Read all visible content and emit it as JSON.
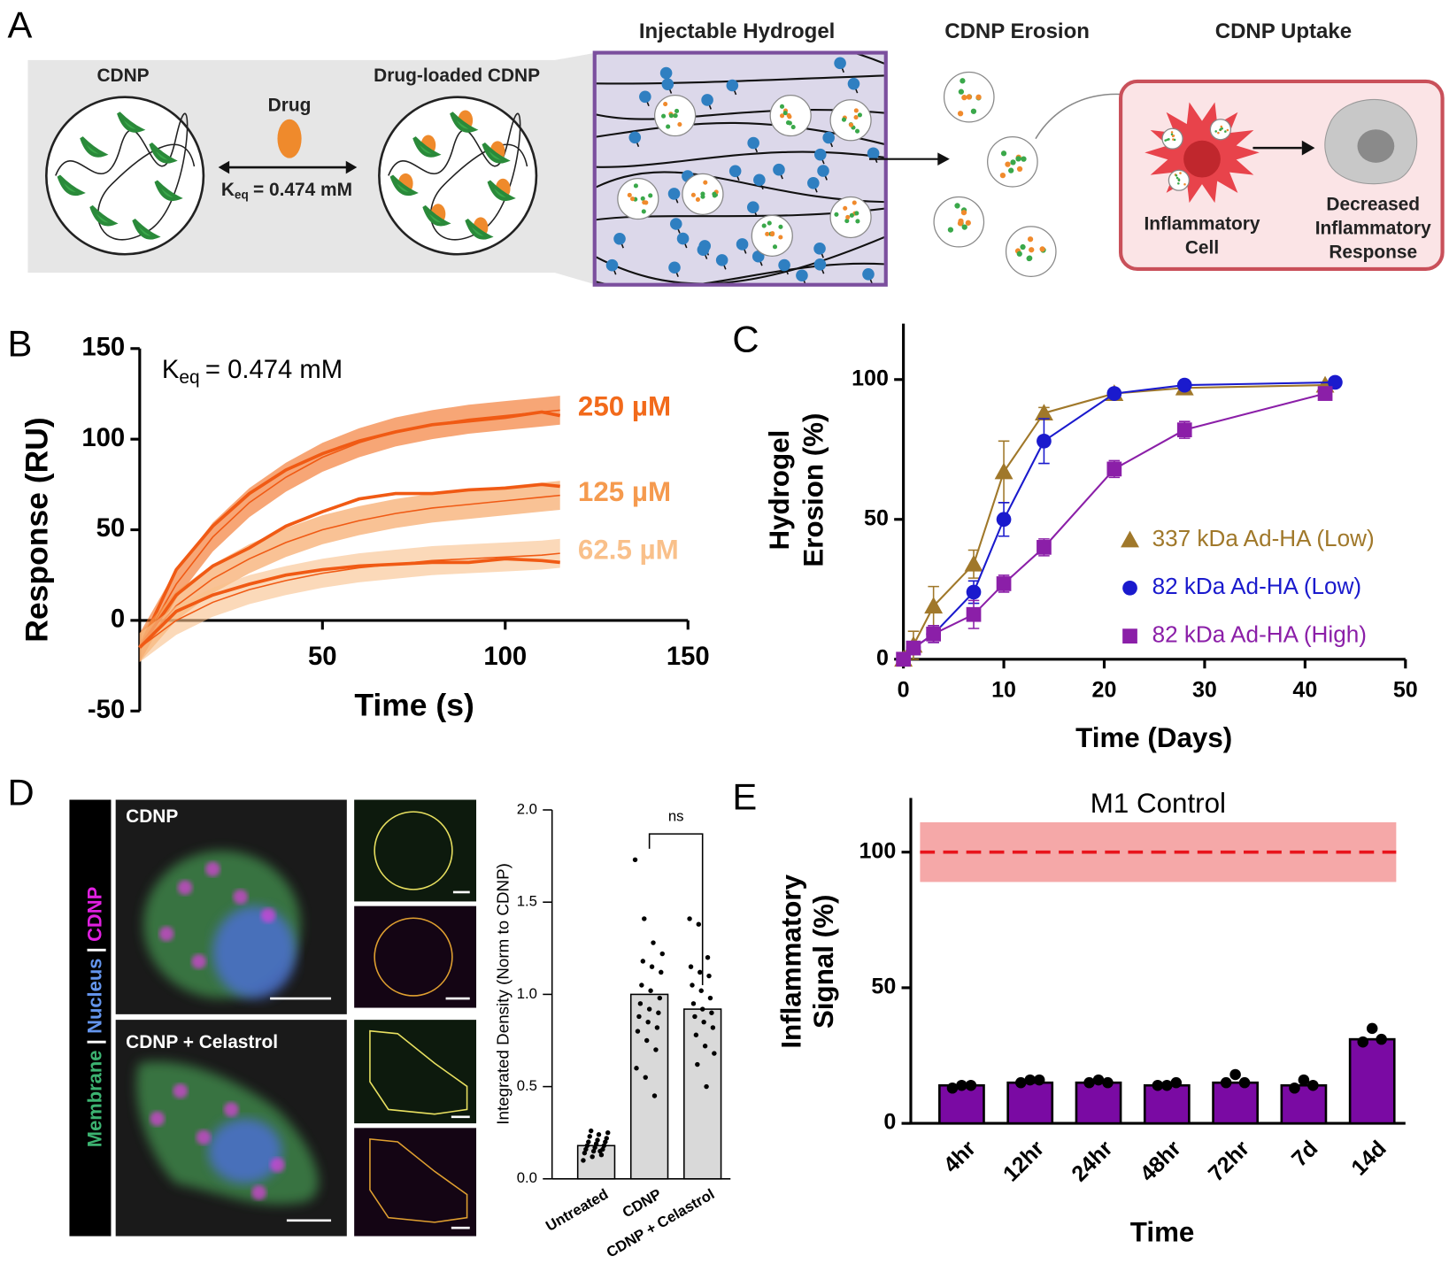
{
  "panel_labels": [
    "A",
    "B",
    "C",
    "D",
    "E"
  ],
  "diagram": {
    "cdnp": "CDNP",
    "drug_loaded": "Drug-loaded CDNP",
    "drug": "Drug",
    "keq": [
      "K",
      "eq",
      "= 0.474 mM"
    ],
    "hydrogel": "Injectable Hydrogel",
    "erosion": "CDNP Erosion",
    "uptake": "CDNP Uptake",
    "cell": [
      "Inflammatory",
      "Cell"
    ],
    "response": [
      "Decreased",
      "Inflammatory",
      "Response"
    ]
  },
  "micrographs": {
    "labels": [
      "CDNP",
      "CDNP + Celastrol"
    ],
    "channels": [
      "Membrane",
      "|",
      "Nucleus",
      "|",
      "CDNP"
    ]
  },
  "chart_data": [
    {
      "type": "line",
      "annotation": [
        "K",
        "eq",
        "= 0.474 mM"
      ],
      "xlabel": "Time (s)",
      "ylabel": "Response (RU)",
      "legend": "inline",
      "line_color": "#f05a14",
      "x": [
        0,
        10,
        20,
        30,
        40,
        50,
        60,
        70,
        80,
        90,
        100,
        110,
        115
      ],
      "xlim": [
        0,
        150
      ],
      "xticks": [
        50,
        100,
        150
      ],
      "ylim": [
        -50,
        150
      ],
      "yticks": [
        -50,
        0,
        50,
        100,
        150
      ],
      "series": [
        {
          "name": "250 µM",
          "color": "#f26a1b",
          "values": [
            -15,
            28,
            52,
            70,
            83,
            92,
            99,
            104,
            108,
            110,
            112,
            115,
            113
          ],
          "fit": [
            -15,
            20,
            46,
            65,
            79,
            90,
            98,
            104,
            108,
            111,
            113,
            115,
            116
          ],
          "fit_error": 8
        },
        {
          "name": "125 µM",
          "color": "#f59a4e",
          "values": [
            -15,
            14,
            30,
            40,
            52,
            60,
            67,
            70,
            70,
            72,
            73,
            75,
            74
          ],
          "fit": [
            -15,
            8,
            23,
            34,
            43,
            50,
            55,
            59,
            62,
            64,
            66,
            68,
            69
          ],
          "fit_error": 8
        },
        {
          "name": "62.5 µM",
          "color": "#f9c08a",
          "values": [
            -15,
            5,
            14,
            20,
            25,
            28,
            30,
            31,
            32,
            32,
            34,
            33,
            32
          ],
          "fit": [
            -15,
            0,
            10,
            17,
            22,
            26,
            29,
            31,
            33,
            34,
            35,
            36,
            37
          ],
          "fit_error": 8
        }
      ]
    },
    {
      "type": "line",
      "xlabel": "Time (Days)",
      "ylabel": [
        "Hydrogel",
        "Erosion (%)"
      ],
      "legend": "right",
      "xlim": [
        0,
        50
      ],
      "xticks": [
        0,
        10,
        20,
        30,
        40,
        50
      ],
      "ylim": [
        0,
        120
      ],
      "yticks": [
        0,
        50,
        100
      ],
      "series": [
        {
          "name": "337 kDa Ad-HA (Low)",
          "color": "#a0782a",
          "marker": "triangle",
          "x": [
            0,
            1,
            3,
            7,
            10,
            14,
            21,
            28,
            42
          ],
          "values": [
            0,
            5,
            19,
            34,
            67,
            88,
            95,
            97,
            98
          ],
          "errors": [
            0,
            5,
            7,
            5,
            11,
            2,
            1,
            1,
            1
          ]
        },
        {
          "name": "82 kDa Ad-HA (Low)",
          "color": "#1a1acd",
          "marker": "circle",
          "x": [
            0,
            1,
            3,
            7,
            10,
            14,
            21,
            28,
            43
          ],
          "values": [
            0,
            4,
            9,
            24,
            50,
            78,
            95,
            98,
            99
          ],
          "errors": [
            0,
            2,
            3,
            4,
            6,
            8,
            1,
            1,
            1
          ]
        },
        {
          "name": "82 kDa Ad-HA (High)",
          "color": "#8b1fa8",
          "marker": "square",
          "x": [
            0,
            1,
            3,
            7,
            10,
            14,
            21,
            28,
            42
          ],
          "values": [
            0,
            4,
            9,
            16,
            27,
            40,
            68,
            82,
            95
          ],
          "errors": [
            0,
            2,
            3,
            5,
            3,
            3,
            3,
            3,
            2
          ]
        }
      ]
    },
    {
      "type": "bar",
      "ylabel": "Integrated Density (Norm to CDNP)",
      "annotation": "ns",
      "color": "#d9d9d9",
      "categories": [
        "Untreated",
        "CDNP",
        "CDNP + Celastrol"
      ],
      "values": [
        0.18,
        1.0,
        0.92
      ],
      "ylim": [
        0,
        2.0
      ],
      "yticks": [
        {
          "value": 0,
          "label": "0.0"
        },
        {
          "value": 0.5,
          "label": "0.5"
        },
        {
          "value": 1.0,
          "label": "1.0"
        },
        {
          "value": 1.5,
          "label": "1.5"
        },
        {
          "value": 2.0,
          "label": "2.0"
        }
      ],
      "points": [
        [
          0.1,
          0.12,
          0.13,
          0.14,
          0.15,
          0.16,
          0.16,
          0.17,
          0.18,
          0.18,
          0.19,
          0.2,
          0.2,
          0.21,
          0.22,
          0.23,
          0.24,
          0.25,
          0.26,
          0.15
        ],
        [
          1.73,
          1.41,
          1.28,
          1.22,
          1.18,
          1.15,
          1.12,
          1.05,
          1.02,
          0.98,
          0.95,
          0.92,
          0.9,
          0.88,
          0.85,
          0.82,
          0.8,
          0.75,
          0.7,
          0.6,
          0.55,
          0.45
        ],
        [
          1.41,
          1.38,
          1.2,
          1.15,
          1.12,
          1.1,
          1.05,
          1.02,
          0.98,
          0.95,
          0.92,
          0.9,
          0.88,
          0.85,
          0.82,
          0.78,
          0.72,
          0.68,
          0.62,
          0.5
        ]
      ]
    },
    {
      "type": "bar",
      "title": "M1 Control",
      "xlabel": "Time",
      "ylabel": [
        "Inflammatory",
        "Signal (%)"
      ],
      "color": "#7a0aa3",
      "categories": [
        "4hr",
        "12hr",
        "24hr",
        "48hr",
        "72hr",
        "7d",
        "14d"
      ],
      "values": [
        14,
        15,
        15,
        14,
        15,
        14,
        31
      ],
      "ylim": [
        0,
        120
      ],
      "yticks": [
        0,
        50,
        100
      ],
      "points": [
        [
          13,
          14,
          14
        ],
        [
          15,
          16,
          16
        ],
        [
          15,
          16,
          15
        ],
        [
          14,
          14,
          15
        ],
        [
          15,
          18,
          15
        ],
        [
          13,
          16,
          14
        ],
        [
          30,
          35,
          31
        ]
      ],
      "reference": {
        "value": 100,
        "low": 89,
        "high": 111,
        "color": "#f28b8b",
        "line_color": "#e8141c"
      }
    }
  ]
}
